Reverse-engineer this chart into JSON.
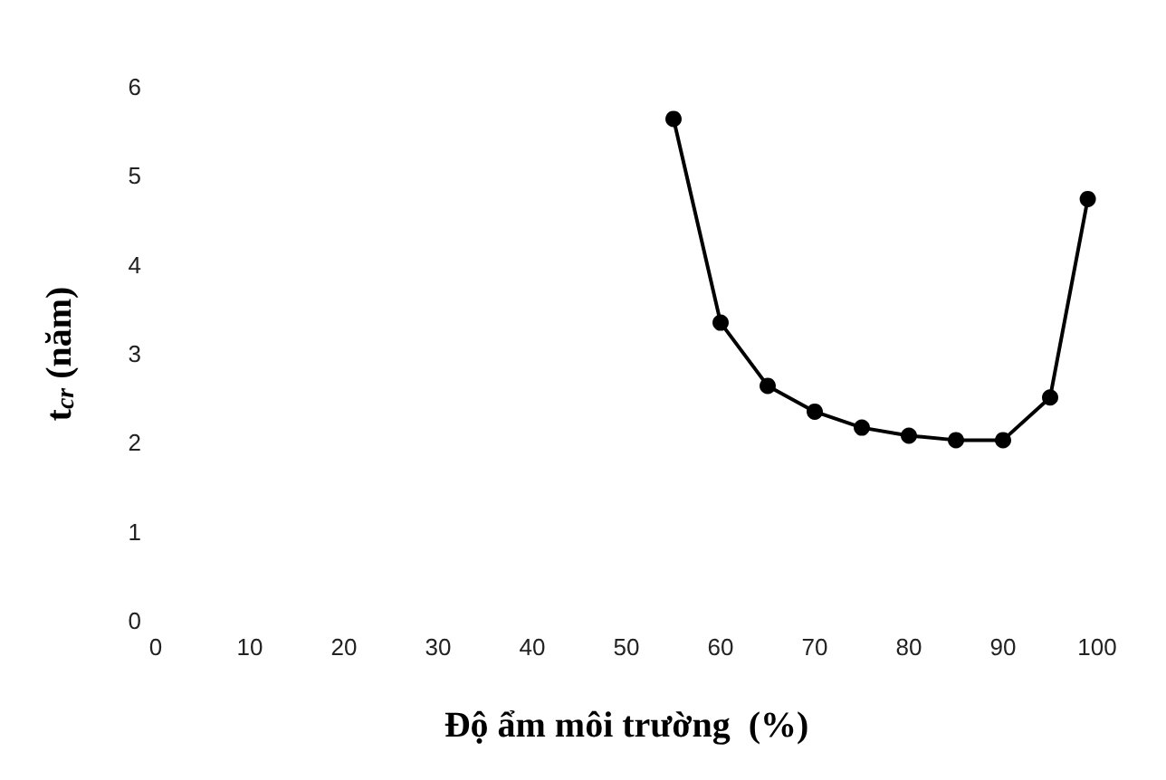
{
  "chart_data": {
    "type": "line",
    "xlabel": "Độ ẩm môi trường  (%)",
    "ylabel": "t$_{cr}$ (năm)",
    "x": [
      55,
      60,
      65,
      70,
      75,
      80,
      85,
      90,
      95,
      99
    ],
    "series": [
      {
        "color": "#000000",
        "values": [
          5.64,
          3.35,
          2.64,
          2.35,
          2.17,
          2.08,
          2.03,
          2.03,
          2.51,
          4.74
        ]
      }
    ],
    "xlim": [
      0,
      100
    ],
    "xticks": [
      0,
      10,
      20,
      30,
      40,
      50,
      60,
      70,
      80,
      90,
      100
    ],
    "ylim": [
      0,
      6
    ],
    "yticks": [
      0,
      1,
      2,
      3,
      4,
      5,
      6
    ],
    "grid": false,
    "marker": "circle",
    "line_style": "solid"
  }
}
